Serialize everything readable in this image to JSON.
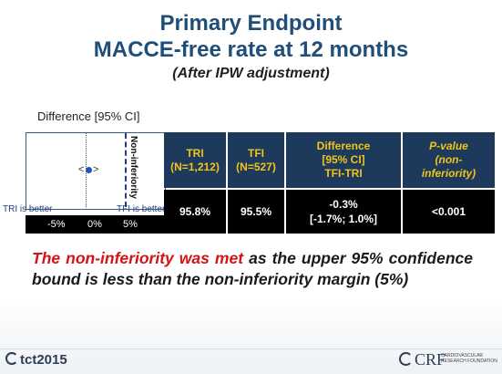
{
  "title": {
    "line1": "Primary Endpoint",
    "line2": "MACCE-free rate at 12 months",
    "line3": "(After IPW adjustment)"
  },
  "forest_plot": {
    "label": "Difference [95% CI]",
    "margin_label": "Non-inferiority",
    "tri_better": "TRI is better",
    "tfi_better": "TFI is better",
    "ticks": [
      "-5%",
      "0%",
      "5%"
    ],
    "ci_left_glyph": "<",
    "ci_right_glyph": ">",
    "point_color": "#1a56c4"
  },
  "table": {
    "headers": {
      "tri": [
        "TRI",
        "(N=1,212)"
      ],
      "tfi": [
        "TFI",
        "(N=527)"
      ],
      "difference": [
        "Difference",
        "[95% CI]",
        "TFI-TRI"
      ],
      "pvalue": [
        "P-value",
        "(non-",
        "inferiority)"
      ]
    },
    "row": {
      "tri": "95.8%",
      "tfi": "95.5%",
      "difference_value": "-0.3%",
      "difference_ci": "[-1.7%; 1.0%]",
      "pvalue": "<0.001"
    }
  },
  "conclusion": {
    "highlight": "The non-inferiority was met",
    "rest": " as the upper 95% confidence bound is less than the non-inferiority margin (5%)"
  },
  "footer": {
    "left_logo": "tct2015",
    "right_logo": "CRF",
    "right_logo_sub": "CARDIOVASCULAR RESEARCH FOUNDATION"
  },
  "colors": {
    "title": "#1f4e79",
    "header_bg": "#1d3a5c",
    "header_text": "#f0c419",
    "highlight": "#d41414"
  }
}
